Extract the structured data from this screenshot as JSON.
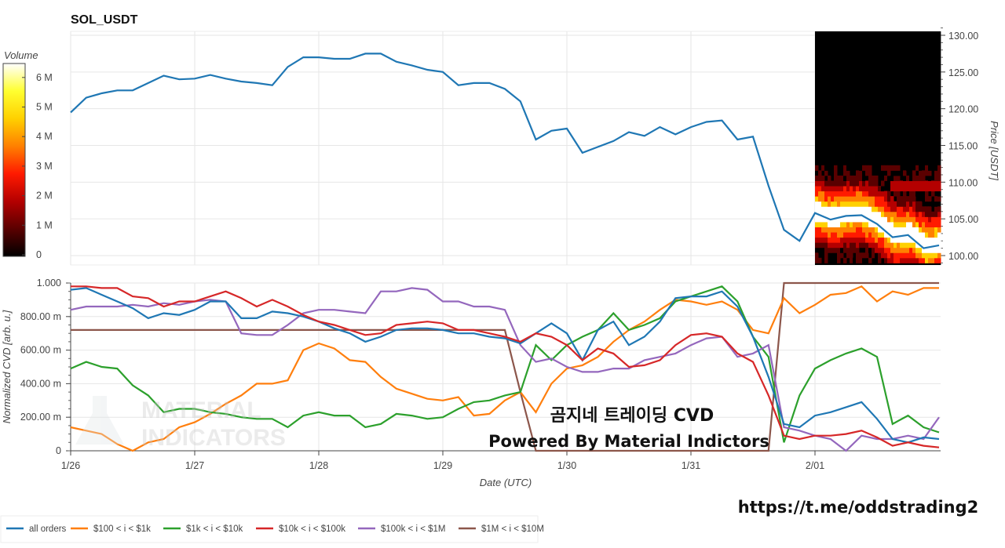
{
  "chart_data": [
    {
      "type": "line",
      "title": "SOL_USDT",
      "ylabel": "Price [USDT]",
      "ylim": [
        99,
        131
      ],
      "yticks": [
        "100.00",
        "105.00",
        "110.00",
        "115.00",
        "120.00",
        "125.00",
        "130.00"
      ],
      "xticks": [
        "1/26",
        "1/27",
        "1/28",
        "1/29",
        "1/30",
        "1/31",
        "2/01"
      ],
      "x_start": "1/26 00:00",
      "x_end": "2/02 00:00",
      "x_step_hours": 3,
      "grid": true,
      "series": [
        {
          "color": "#1f77b4",
          "values": [
            119.5,
            121.5,
            122.1,
            122.5,
            122.5,
            123.5,
            124.5,
            124.0,
            124.1,
            124.6,
            124.1,
            123.7,
            123.5,
            123.2,
            125.7,
            127.0,
            127.0,
            126.8,
            126.8,
            127.5,
            127.5,
            126.4,
            125.9,
            125.3,
            125.0,
            123.2,
            123.5,
            123.5,
            122.7,
            121.0,
            115.8,
            117.0,
            117.3,
            114.0,
            114.8,
            115.6,
            116.8,
            116.3,
            117.5,
            116.5,
            117.5,
            118.2,
            118.4,
            115.8,
            116.2,
            109.5,
            103.5,
            102.0,
            105.8,
            104.9,
            105.4,
            105.5,
            104.3,
            102.5,
            102.8,
            101.0,
            101.4
          ]
        }
      ],
      "heatmap": {
        "colorbar_title": "Volume",
        "colorbar_ticks": [
          "0",
          "1 M",
          "2 M",
          "3 M",
          "4 M",
          "5 M",
          "6 M"
        ],
        "colorscale": [
          "#000000",
          "#5a0000",
          "#b40000",
          "#ff1a00",
          "#ff8000",
          "#ffd000",
          "#ffff30",
          "#ffffff"
        ],
        "range_start": "2/01 00:00"
      }
    },
    {
      "type": "line",
      "ylabel": "Normalized CVD [arb. u.]",
      "xlabel": "Date (UTC)",
      "ylim": [
        0,
        1
      ],
      "yticks": [
        "0",
        "200.00 m",
        "400.00 m",
        "600.00 m",
        "800.00 m",
        "1.000"
      ],
      "xticks": [
        "1/26",
        "1/27",
        "1/28",
        "1/29",
        "1/30",
        "1/31",
        "2/01"
      ],
      "x_start": "1/26 00:00",
      "x_end": "2/02 00:00",
      "x_step_hours": 3,
      "grid": true,
      "legend_position": "bottom-left",
      "series": [
        {
          "name": "all orders",
          "color": "#1f77b4",
          "values": [
            0.96,
            0.97,
            0.93,
            0.89,
            0.85,
            0.79,
            0.82,
            0.81,
            0.84,
            0.89,
            0.89,
            0.79,
            0.79,
            0.83,
            0.82,
            0.8,
            0.77,
            0.73,
            0.7,
            0.65,
            0.68,
            0.72,
            0.73,
            0.73,
            0.72,
            0.7,
            0.7,
            0.68,
            0.67,
            0.64,
            0.7,
            0.76,
            0.7,
            0.54,
            0.72,
            0.77,
            0.63,
            0.68,
            0.77,
            0.91,
            0.92,
            0.92,
            0.95,
            0.86,
            0.68,
            0.44,
            0.16,
            0.14,
            0.21,
            0.23,
            0.26,
            0.29,
            0.19,
            0.07,
            0.05,
            0.08,
            0.07
          ]
        },
        {
          "name": "$100 < i < $1k",
          "color": "#ff7f0e",
          "values": [
            0.14,
            0.12,
            0.1,
            0.04,
            0.0,
            0.05,
            0.07,
            0.14,
            0.17,
            0.22,
            0.28,
            0.33,
            0.4,
            0.4,
            0.42,
            0.6,
            0.64,
            0.61,
            0.54,
            0.53,
            0.44,
            0.37,
            0.34,
            0.31,
            0.3,
            0.32,
            0.21,
            0.22,
            0.3,
            0.35,
            0.23,
            0.4,
            0.49,
            0.51,
            0.56,
            0.65,
            0.72,
            0.77,
            0.84,
            0.9,
            0.89,
            0.87,
            0.89,
            0.84,
            0.72,
            0.7,
            0.91,
            0.82,
            0.87,
            0.93,
            0.94,
            0.98,
            0.89,
            0.95,
            0.93,
            0.97,
            0.97
          ]
        },
        {
          "name": "$1k < i < $10k",
          "color": "#2ca02c",
          "values": [
            0.49,
            0.53,
            0.5,
            0.49,
            0.39,
            0.33,
            0.23,
            0.25,
            0.25,
            0.23,
            0.22,
            0.2,
            0.19,
            0.19,
            0.14,
            0.21,
            0.23,
            0.21,
            0.21,
            0.14,
            0.16,
            0.22,
            0.21,
            0.19,
            0.2,
            0.25,
            0.29,
            0.3,
            0.33,
            0.35,
            0.63,
            0.54,
            0.63,
            0.68,
            0.72,
            0.82,
            0.72,
            0.75,
            0.79,
            0.89,
            0.92,
            0.95,
            0.98,
            0.89,
            0.68,
            0.56,
            0.05,
            0.33,
            0.49,
            0.54,
            0.58,
            0.61,
            0.56,
            0.16,
            0.21,
            0.14,
            0.11
          ]
        },
        {
          "name": "$10k < i < $100k",
          "color": "#d62728",
          "values": [
            0.98,
            0.98,
            0.97,
            0.97,
            0.92,
            0.91,
            0.86,
            0.89,
            0.89,
            0.92,
            0.95,
            0.91,
            0.86,
            0.9,
            0.86,
            0.81,
            0.77,
            0.75,
            0.72,
            0.69,
            0.7,
            0.75,
            0.76,
            0.77,
            0.76,
            0.72,
            0.72,
            0.7,
            0.68,
            0.65,
            0.7,
            0.68,
            0.63,
            0.54,
            0.61,
            0.58,
            0.5,
            0.51,
            0.54,
            0.63,
            0.69,
            0.7,
            0.68,
            0.58,
            0.53,
            0.33,
            0.09,
            0.07,
            0.09,
            0.09,
            0.1,
            0.12,
            0.08,
            0.03,
            0.05,
            0.03,
            0.02
          ]
        },
        {
          "name": "$100k < i < $1M",
          "color": "#9467bd",
          "values": [
            0.84,
            0.86,
            0.86,
            0.86,
            0.87,
            0.86,
            0.88,
            0.87,
            0.89,
            0.9,
            0.89,
            0.7,
            0.69,
            0.69,
            0.75,
            0.82,
            0.84,
            0.84,
            0.83,
            0.82,
            0.95,
            0.95,
            0.97,
            0.96,
            0.89,
            0.89,
            0.86,
            0.86,
            0.84,
            0.63,
            0.53,
            0.55,
            0.5,
            0.47,
            0.47,
            0.49,
            0.49,
            0.54,
            0.56,
            0.58,
            0.63,
            0.67,
            0.68,
            0.56,
            0.58,
            0.63,
            0.14,
            0.12,
            0.09,
            0.07,
            0.0,
            0.09,
            0.07,
            0.07,
            0.09,
            0.07,
            0.2
          ]
        },
        {
          "name": "$1M < i < $10M",
          "color": "#8c564b",
          "values": [
            0.72,
            0.72,
            0.72,
            0.72,
            0.72,
            0.72,
            0.72,
            0.72,
            0.72,
            0.72,
            0.72,
            0.72,
            0.72,
            0.72,
            0.72,
            0.72,
            0.72,
            0.72,
            0.72,
            0.72,
            0.72,
            0.72,
            0.72,
            0.72,
            0.72,
            0.72,
            0.72,
            0.72,
            0.72,
            0.35,
            0,
            0,
            0,
            0,
            0,
            0,
            0,
            0,
            0,
            0,
            0,
            0,
            0,
            0,
            0,
            0,
            1,
            1,
            1,
            1,
            1,
            1,
            1,
            1,
            1,
            1,
            1
          ]
        }
      ]
    }
  ],
  "watermarks": {
    "line1": "곰지네 트레이딩 CVD",
    "line2": "Powered By Material Indictors",
    "url": "https://t.me/oddstrading2",
    "logo_line1": "MATERIAL",
    "logo_line2": "INDICATORS"
  }
}
